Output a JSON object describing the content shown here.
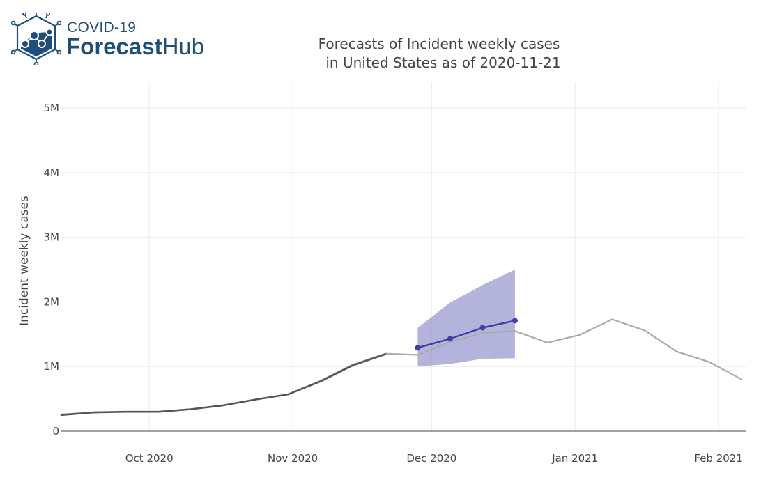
{
  "logo": {
    "line1": "COVID-19",
    "line2_bold": "Forecast",
    "line2_light": "Hub",
    "icon": "virus-network-icon",
    "color": "#1f4e79"
  },
  "chart_data": {
    "type": "line",
    "title": "Forecasts of Incident weekly cases\n in United States as of 2020-11-21",
    "xlabel": "",
    "ylabel": "Incident weekly cases",
    "x_range": [
      "2020-09-12",
      "2021-02-07"
    ],
    "ylim": [
      0,
      5400000
    ],
    "x_ticks": [
      {
        "date": "2020-10-01",
        "label": "Oct 2020"
      },
      {
        "date": "2020-11-01",
        "label": "Nov 2020"
      },
      {
        "date": "2020-12-01",
        "label": "Dec 2020"
      },
      {
        "date": "2021-01-01",
        "label": "Jan 2021"
      },
      {
        "date": "2021-02-01",
        "label": "Feb 2021"
      }
    ],
    "y_ticks": [
      {
        "value": 0,
        "label": "0"
      },
      {
        "value": 1000000,
        "label": "1M"
      },
      {
        "value": 2000000,
        "label": "2M"
      },
      {
        "value": 3000000,
        "label": "3M"
      },
      {
        "value": 4000000,
        "label": "4M"
      },
      {
        "value": 5000000,
        "label": "5M"
      }
    ],
    "grid": true,
    "series": [
      {
        "kind": "truth-full",
        "color": "#aaaaaa",
        "points": [
          [
            "2020-09-12",
            260000
          ],
          [
            "2020-09-19",
            290000
          ],
          [
            "2020-09-26",
            300000
          ],
          [
            "2020-10-03",
            300000
          ],
          [
            "2020-10-10",
            340000
          ],
          [
            "2020-10-17",
            400000
          ],
          [
            "2020-10-24",
            490000
          ],
          [
            "2020-10-31",
            570000
          ],
          [
            "2020-11-07",
            780000
          ],
          [
            "2020-11-14",
            1030000
          ],
          [
            "2020-11-21",
            1200000
          ],
          [
            "2020-11-28",
            1180000
          ],
          [
            "2020-12-05",
            1380000
          ],
          [
            "2020-12-12",
            1520000
          ],
          [
            "2020-12-19",
            1550000
          ],
          [
            "2020-12-26",
            1370000
          ],
          [
            "2021-01-02",
            1490000
          ],
          [
            "2021-01-09",
            1730000
          ],
          [
            "2021-01-16",
            1560000
          ],
          [
            "2021-01-23",
            1230000
          ],
          [
            "2021-01-30",
            1070000
          ],
          [
            "2021-02-06",
            800000
          ]
        ]
      },
      {
        "kind": "truth-as-of",
        "color": "#555555",
        "points": [
          [
            "2020-09-12",
            250000
          ],
          [
            "2020-09-19",
            290000
          ],
          [
            "2020-09-26",
            300000
          ],
          [
            "2020-10-03",
            300000
          ],
          [
            "2020-10-10",
            340000
          ],
          [
            "2020-10-17",
            400000
          ],
          [
            "2020-10-24",
            490000
          ],
          [
            "2020-10-31",
            570000
          ],
          [
            "2020-11-07",
            770000
          ],
          [
            "2020-11-14",
            1020000
          ],
          [
            "2020-11-21",
            1190000
          ]
        ]
      },
      {
        "kind": "forecast",
        "color": "#3f3f9f",
        "band_color": "#8b8bc9",
        "points": [
          [
            "2020-11-28",
            1290000
          ],
          [
            "2020-12-05",
            1430000
          ],
          [
            "2020-12-12",
            1600000
          ],
          [
            "2020-12-19",
            1710000
          ]
        ],
        "lower": [
          [
            "2020-11-28",
            1000000
          ],
          [
            "2020-12-05",
            1040000
          ],
          [
            "2020-12-12",
            1120000
          ],
          [
            "2020-12-19",
            1130000
          ]
        ],
        "upper": [
          [
            "2020-11-28",
            1600000
          ],
          [
            "2020-12-05",
            1990000
          ],
          [
            "2020-12-12",
            2260000
          ],
          [
            "2020-12-19",
            2500000
          ]
        ]
      }
    ]
  }
}
